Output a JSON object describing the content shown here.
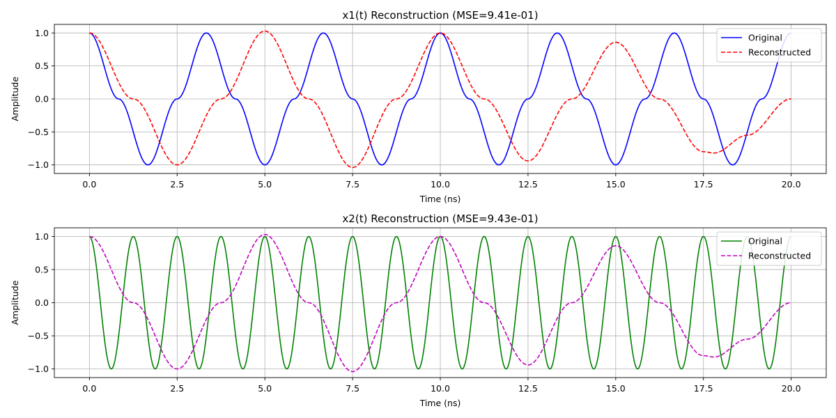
{
  "figure": {
    "background": "#ffffff"
  },
  "chart_data": [
    {
      "type": "line",
      "title": "x1(t) Reconstruction (MSE=9.41e-01)",
      "xlabel": "Time (ns)",
      "ylabel": "Amplitude",
      "xlim": [
        -1.0,
        21.0
      ],
      "ylim": [
        -1.13,
        1.13
      ],
      "xticks": [
        0.0,
        2.5,
        5.0,
        7.5,
        10.0,
        12.5,
        15.0,
        17.5,
        20.0
      ],
      "xtick_labels": [
        "0.0",
        "2.5",
        "5.0",
        "7.5",
        "10.0",
        "12.5",
        "15.0",
        "17.5",
        "20.0"
      ],
      "yticks": [
        1.0,
        0.5,
        0.0,
        -0.5,
        -1.0
      ],
      "ytick_labels": [
        "1.0",
        "0.5",
        "0.0",
        "−0.5",
        "−1.0"
      ],
      "grid": true,
      "legend_position": "top-right",
      "series": [
        {
          "name": "Original",
          "color": "#0000ff",
          "style": "solid",
          "x": [
            0.0,
            0.833,
            1.667,
            2.5,
            3.333,
            4.167,
            5.0,
            5.833,
            6.667,
            7.5,
            8.333,
            9.167,
            10.0,
            10.833,
            11.667,
            12.5,
            13.333,
            14.167,
            15.0,
            15.833,
            16.667,
            17.5,
            18.333,
            19.167,
            20.0
          ],
          "y": [
            1.0,
            0.0,
            -1.0,
            0.0,
            1.0,
            0.0,
            -1.0,
            0.0,
            1.0,
            0.0,
            -1.0,
            0.0,
            1.0,
            0.0,
            -1.0,
            0.0,
            1.0,
            0.0,
            -1.0,
            0.0,
            1.0,
            0.0,
            -1.0,
            0.0,
            1.0
          ]
        },
        {
          "name": "Reconstructed",
          "color": "#ff0000",
          "style": "dashed",
          "x": [
            0.0,
            1.25,
            2.5,
            3.75,
            5.0,
            6.25,
            7.5,
            8.75,
            10.0,
            11.25,
            12.5,
            13.75,
            15.0,
            16.25,
            17.5,
            17.8,
            18.75,
            20.0
          ],
          "y": [
            1.0,
            0.0,
            -1.0,
            0.0,
            1.03,
            0.0,
            -1.04,
            0.0,
            1.0,
            0.0,
            -0.94,
            0.0,
            0.86,
            0.0,
            -0.8,
            -0.82,
            -0.55,
            0.0
          ]
        }
      ]
    },
    {
      "type": "line",
      "title": "x2(t) Reconstruction (MSE=9.43e-01)",
      "xlabel": "Time (ns)",
      "ylabel": "Amplitude",
      "xlim": [
        -1.0,
        21.0
      ],
      "ylim": [
        -1.13,
        1.13
      ],
      "xticks": [
        0.0,
        2.5,
        5.0,
        7.5,
        10.0,
        12.5,
        15.0,
        17.5,
        20.0
      ],
      "xtick_labels": [
        "0.0",
        "2.5",
        "5.0",
        "7.5",
        "10.0",
        "12.5",
        "15.0",
        "17.5",
        "20.0"
      ],
      "yticks": [
        1.0,
        0.5,
        0.0,
        -0.5,
        -1.0
      ],
      "ytick_labels": [
        "1.0",
        "0.5",
        "0.0",
        "−0.5",
        "−1.0"
      ],
      "grid": true,
      "legend_position": "top-right",
      "series": [
        {
          "name": "Original",
          "color": "#008000",
          "style": "solid",
          "x": [
            0.0,
            0.625,
            1.25,
            1.875,
            2.5,
            3.125,
            3.75,
            4.375,
            5.0,
            5.625,
            6.25,
            6.875,
            7.5,
            8.125,
            8.75,
            9.375,
            10.0,
            10.625,
            11.25,
            11.875,
            12.5,
            13.125,
            13.75,
            14.375,
            15.0,
            15.625,
            16.25,
            16.875,
            17.5,
            18.125,
            18.75,
            19.375,
            20.0
          ],
          "y": [
            1.0,
            -1.0,
            1.0,
            -1.0,
            1.0,
            -1.0,
            1.0,
            -1.0,
            1.0,
            -1.0,
            1.0,
            -1.0,
            1.0,
            -1.0,
            1.0,
            -1.0,
            1.0,
            -1.0,
            1.0,
            -1.0,
            1.0,
            -1.0,
            1.0,
            -1.0,
            1.0,
            -1.0,
            1.0,
            -1.0,
            1.0,
            -1.0,
            1.0,
            -1.0,
            1.0
          ]
        },
        {
          "name": "Reconstructed",
          "color": "#bf00bf",
          "style": "dashed",
          "x": [
            0.0,
            1.25,
            2.5,
            3.75,
            5.0,
            6.25,
            7.5,
            8.75,
            10.0,
            11.25,
            12.5,
            13.75,
            15.0,
            16.25,
            17.5,
            17.8,
            18.75,
            20.0
          ],
          "y": [
            1.0,
            0.0,
            -1.0,
            0.0,
            1.03,
            0.0,
            -1.04,
            0.0,
            1.0,
            0.0,
            -0.94,
            0.0,
            0.86,
            0.0,
            -0.8,
            -0.82,
            -0.55,
            0.0
          ]
        }
      ]
    }
  ]
}
